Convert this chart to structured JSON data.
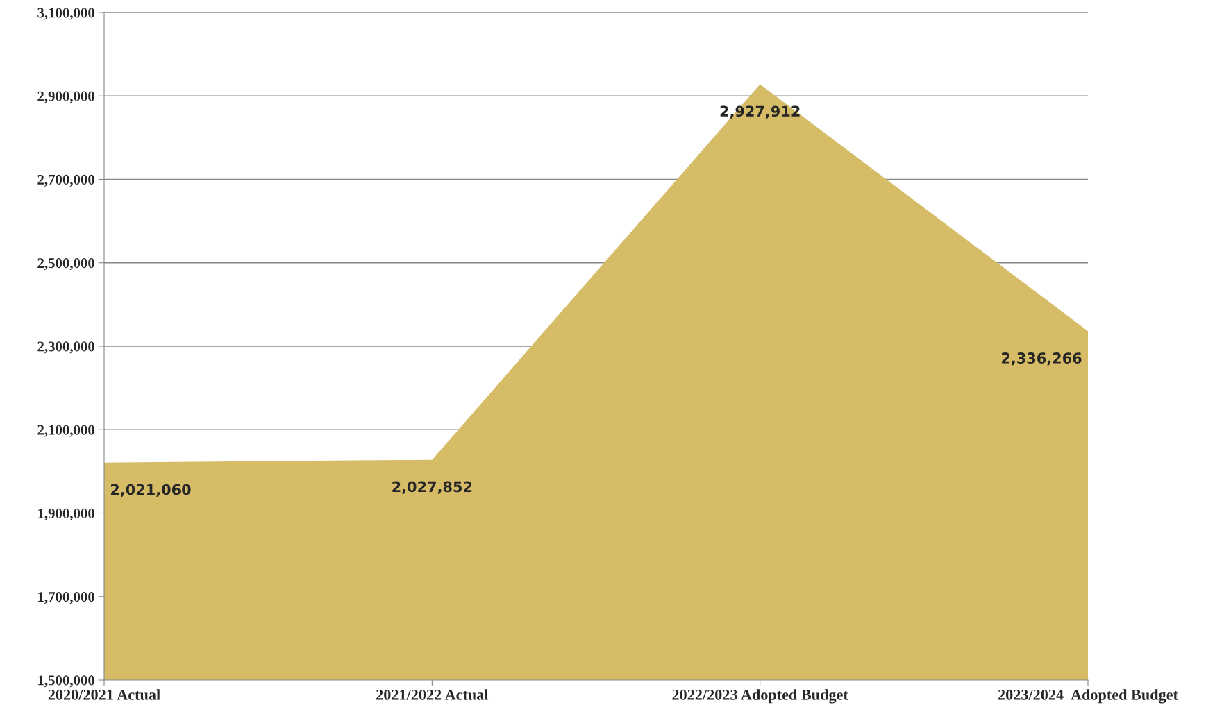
{
  "chart_data": {
    "type": "area",
    "categories": [
      "2020/2021 Actual",
      "2021/2022 Actual",
      "2022/2023 Adopted Budget",
      "2023/2024  Adopted Budget"
    ],
    "values": [
      2021060,
      2027852,
      2927912,
      2336266
    ],
    "color": "#d6bc66",
    "value_labels": [
      "2,021,060",
      "2,027,852",
      "2,927,912",
      "2,336,266"
    ],
    "ylim": [
      1500000,
      3100000
    ],
    "yticks": [
      {
        "value": 1500000,
        "label": "1,500,000"
      },
      {
        "value": 1700000,
        "label": "1,700,000"
      },
      {
        "value": 1900000,
        "label": "1,900,000"
      },
      {
        "value": 2100000,
        "label": "2,100,000"
      },
      {
        "value": 2300000,
        "label": "2,300,000"
      },
      {
        "value": 2500000,
        "label": "2,500,000"
      },
      {
        "value": 2700000,
        "label": "2,700,000"
      },
      {
        "value": 2900000,
        "label": "2,900,000"
      },
      {
        "value": 3100000,
        "label": "3,100,000"
      }
    ],
    "grid": "y"
  }
}
